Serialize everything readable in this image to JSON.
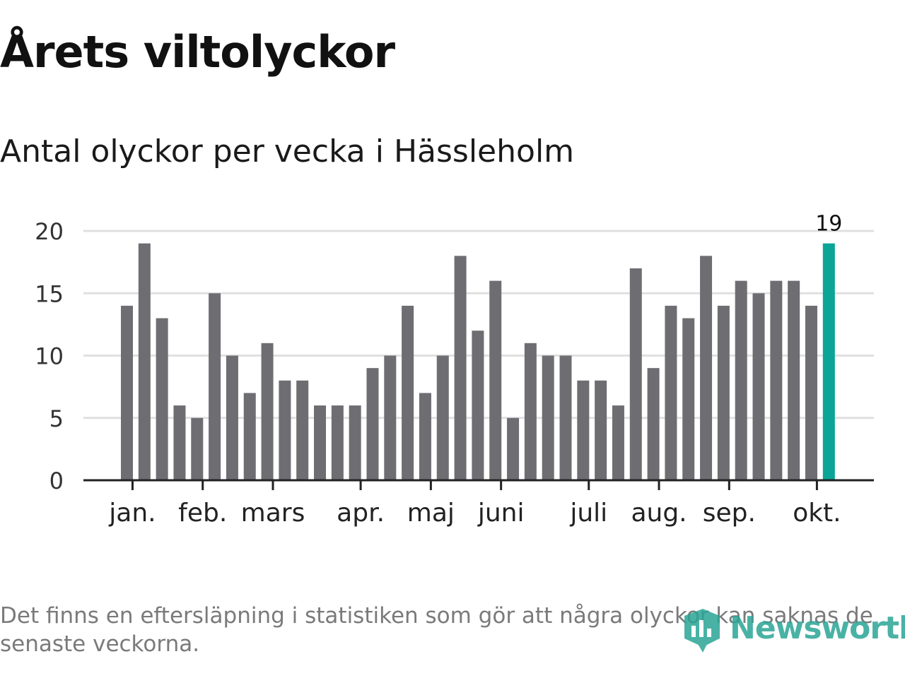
{
  "header": {
    "title": "Årets viltolyckor",
    "subtitle": "Antal olyckor per vecka i Hässleholm"
  },
  "chart_data": {
    "type": "bar",
    "values": [
      14,
      19,
      13,
      6,
      5,
      15,
      10,
      7,
      11,
      8,
      8,
      6,
      6,
      6,
      9,
      10,
      14,
      7,
      10,
      18,
      12,
      16,
      5,
      11,
      10,
      10,
      8,
      8,
      6,
      17,
      9,
      14,
      13,
      18,
      14,
      16,
      15,
      16,
      16,
      14,
      19
    ],
    "month_labels": [
      {
        "label": "jan.",
        "week_index": 0.4
      },
      {
        "label": "feb.",
        "week_index": 4.4
      },
      {
        "label": "mars",
        "week_index": 8.4
      },
      {
        "label": "apr.",
        "week_index": 13.4
      },
      {
        "label": "maj",
        "week_index": 17.4
      },
      {
        "label": "juni",
        "week_index": 21.4
      },
      {
        "label": "juli",
        "week_index": 26.4
      },
      {
        "label": "aug.",
        "week_index": 30.4
      },
      {
        "label": "sep.",
        "week_index": 34.4
      },
      {
        "label": "okt.",
        "week_index": 39.4
      }
    ],
    "yticks": [
      0,
      5,
      10,
      15,
      20
    ],
    "ylim": [
      0,
      20
    ],
    "highlight": {
      "index": 40,
      "label": "19"
    },
    "grid": true,
    "colors": {
      "bar": "#6e6d72",
      "highlight": "#0aa596",
      "grid": "#e0e0e0",
      "axis": "#222222"
    }
  },
  "footer": {
    "note": "Det finns en eftersläpning i statistiken som gör att några olyckor kan saknas de senaste veckorna.",
    "brand": "Newsworthy"
  }
}
